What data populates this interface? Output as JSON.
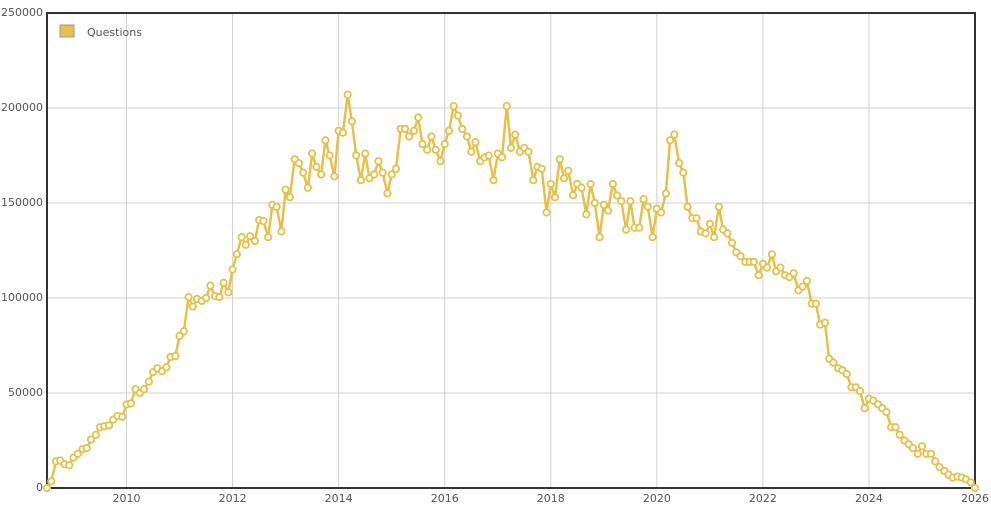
{
  "chart_data": {
    "type": "line",
    "x": [
      2008.5,
      2008.58,
      2008.67,
      2008.75,
      2008.83,
      2008.92,
      2009,
      2009.08,
      2009.17,
      2009.25,
      2009.33,
      2009.42,
      2009.5,
      2009.58,
      2009.67,
      2009.75,
      2009.83,
      2009.92,
      2010,
      2010.08,
      2010.17,
      2010.25,
      2010.33,
      2010.42,
      2010.5,
      2010.58,
      2010.67,
      2010.75,
      2010.83,
      2010.92,
      2011,
      2011.08,
      2011.17,
      2011.25,
      2011.33,
      2011.42,
      2011.5,
      2011.58,
      2011.67,
      2011.75,
      2011.83,
      2011.92,
      2012,
      2012.08,
      2012.17,
      2012.25,
      2012.33,
      2012.42,
      2012.5,
      2012.58,
      2012.67,
      2012.75,
      2012.83,
      2012.92,
      2013,
      2013.08,
      2013.17,
      2013.25,
      2013.33,
      2013.42,
      2013.5,
      2013.58,
      2013.67,
      2013.75,
      2013.83,
      2013.92,
      2014,
      2014.08,
      2014.17,
      2014.25,
      2014.33,
      2014.42,
      2014.5,
      2014.58,
      2014.67,
      2014.75,
      2014.83,
      2014.92,
      2015,
      2015.08,
      2015.17,
      2015.25,
      2015.33,
      2015.42,
      2015.5,
      2015.58,
      2015.67,
      2015.75,
      2015.83,
      2015.92,
      2016,
      2016.08,
      2016.17,
      2016.25,
      2016.33,
      2016.42,
      2016.5,
      2016.58,
      2016.67,
      2016.75,
      2016.83,
      2016.92,
      2017,
      2017.08,
      2017.17,
      2017.25,
      2017.33,
      2017.42,
      2017.5,
      2017.58,
      2017.67,
      2017.75,
      2017.83,
      2017.92,
      2018,
      2018.08,
      2018.17,
      2018.25,
      2018.33,
      2018.42,
      2018.5,
      2018.58,
      2018.67,
      2018.75,
      2018.83,
      2018.92,
      2019,
      2019.08,
      2019.17,
      2019.25,
      2019.33,
      2019.42,
      2019.5,
      2019.58,
      2019.67,
      2019.75,
      2019.83,
      2019.92,
      2020,
      2020.08,
      2020.17,
      2020.25,
      2020.33,
      2020.42,
      2020.5,
      2020.58,
      2020.67,
      2020.75,
      2020.83,
      2020.92,
      2021,
      2021.08,
      2021.17,
      2021.25,
      2021.33,
      2021.42,
      2021.5,
      2021.58,
      2021.67,
      2021.75,
      2021.83,
      2021.92,
      2022,
      2022.08,
      2022.17,
      2022.25,
      2022.33,
      2022.42,
      2022.5,
      2022.58,
      2022.67,
      2022.75,
      2022.83,
      2022.92,
      2023,
      2023.08,
      2023.17,
      2023.25,
      2023.33,
      2023.42,
      2023.5,
      2023.58,
      2023.67,
      2023.75,
      2023.83,
      2023.92,
      2024,
      2024.08,
      2024.17,
      2024.25,
      2024.33,
      2024.42,
      2024.5,
      2024.58,
      2024.67,
      2024.75,
      2024.83,
      2024.92,
      2025,
      2025.08,
      2025.17,
      2025.25,
      2025.33,
      2025.42,
      2025.5,
      2025.58,
      2025.67,
      2025.75,
      2025.83,
      2025.92,
      2026
    ],
    "series": [
      {
        "name": "Questions",
        "color": "#e5c04b",
        "values": [
          0,
          3500,
          14000,
          14500,
          12500,
          12000,
          16000,
          18000,
          20500,
          21000,
          25500,
          28000,
          32000,
          32500,
          33000,
          36000,
          38000,
          37500,
          44000,
          44500,
          52000,
          50000,
          52000,
          56000,
          61000,
          63000,
          61500,
          63500,
          69000,
          69500,
          80000,
          82500,
          100500,
          95500,
          99500,
          98500,
          100000,
          106500,
          101000,
          100500,
          108000,
          103000,
          115000,
          123000,
          132000,
          128000,
          132500,
          130000,
          141000,
          140500,
          132000,
          149000,
          148000,
          135000,
          157000,
          153000,
          173000,
          171000,
          166000,
          158000,
          176000,
          169000,
          165000,
          183000,
          175000,
          164000,
          188000,
          187000,
          207000,
          193000,
          175000,
          162000,
          176000,
          163000,
          165000,
          172000,
          166000,
          155000,
          165000,
          168000,
          189000,
          189000,
          185000,
          188000,
          195000,
          181000,
          178000,
          185000,
          178000,
          172000,
          181000,
          188000,
          201000,
          196000,
          189000,
          185000,
          177000,
          182000,
          172000,
          174000,
          175000,
          162000,
          176000,
          174000,
          201000,
          179000,
          186000,
          177000,
          179000,
          177000,
          162000,
          169000,
          168000,
          145000,
          160000,
          153000,
          173000,
          163000,
          167000,
          154000,
          160000,
          158000,
          144000,
          160000,
          150000,
          132000,
          149000,
          146000,
          160000,
          154000,
          151000,
          136000,
          151000,
          137000,
          137000,
          152000,
          148000,
          132000,
          147000,
          145000,
          155000,
          183000,
          186000,
          171000,
          166000,
          148000,
          142000,
          142000,
          135000,
          134000,
          139000,
          132000,
          148000,
          136000,
          134000,
          129000,
          124000,
          122000,
          119000,
          119000,
          119000,
          112000,
          118000,
          116000,
          123000,
          114000,
          116000,
          112000,
          111000,
          113000,
          104000,
          106000,
          109000,
          97000,
          97000,
          86000,
          87000,
          68000,
          66000,
          63000,
          62000,
          60000,
          53000,
          53000,
          51000,
          42000,
          47000,
          46000,
          44000,
          42000,
          40000,
          32000,
          32000,
          28000,
          25000,
          23000,
          21000,
          18000,
          22000,
          18000,
          18000,
          14000,
          11000,
          9000,
          7000,
          5500,
          6000,
          5500,
          4500,
          3000,
          0
        ]
      }
    ],
    "xlim": [
      2008.5,
      2026
    ],
    "xticks": [
      2010,
      2012,
      2014,
      2016,
      2018,
      2020,
      2022,
      2024,
      2026
    ],
    "ylim": [
      0,
      250000
    ],
    "yticks": [
      0,
      50000,
      100000,
      150000,
      200000,
      250000
    ],
    "grid": true,
    "legend": "upper left"
  }
}
